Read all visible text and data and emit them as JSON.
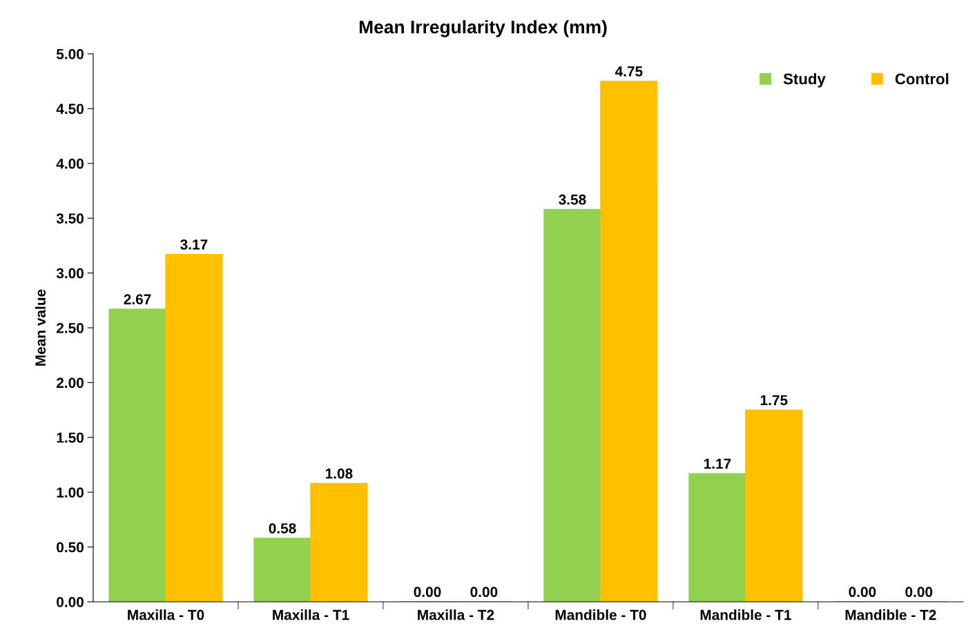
{
  "chart_data": {
    "type": "bar",
    "title": "Mean Irregularity Index (mm)",
    "ylabel": "Mean value",
    "categories": [
      "Maxilla - T0",
      "Maxilla - T1",
      "Maxilla - T2",
      "Mandible - T0",
      "Mandible - T1",
      "Mandible - T2"
    ],
    "series": [
      {
        "name": "Study",
        "color": "#92d050",
        "values": [
          2.67,
          0.58,
          0,
          3.58,
          1.17,
          0
        ],
        "value_labels": [
          "2.67",
          "0.58",
          "0.00",
          "3.58",
          "1.17",
          "0.00"
        ]
      },
      {
        "name": "Control",
        "color": "#ffc000",
        "values": [
          3.17,
          1.08,
          0,
          4.75,
          1.75,
          0
        ],
        "value_labels": [
          "3.17",
          "1.08",
          "0.00",
          "4.75",
          "1.75",
          "0.00"
        ]
      }
    ],
    "ylim": [
      0,
      5
    ],
    "yticks": [
      {
        "value": 0,
        "label": "0.00"
      },
      {
        "value": 0.5,
        "label": "0.50"
      },
      {
        "value": 1,
        "label": "1.00"
      },
      {
        "value": 1.5,
        "label": "1.50"
      },
      {
        "value": 2,
        "label": "2.00"
      },
      {
        "value": 2.5,
        "label": "2.50"
      },
      {
        "value": 3,
        "label": "3.00"
      },
      {
        "value": 3.5,
        "label": "3.50"
      },
      {
        "value": 4,
        "label": "4.00"
      },
      {
        "value": 4.5,
        "label": "4.50"
      },
      {
        "value": 5,
        "label": "5.00"
      }
    ],
    "grid": false,
    "legend": "top right"
  }
}
